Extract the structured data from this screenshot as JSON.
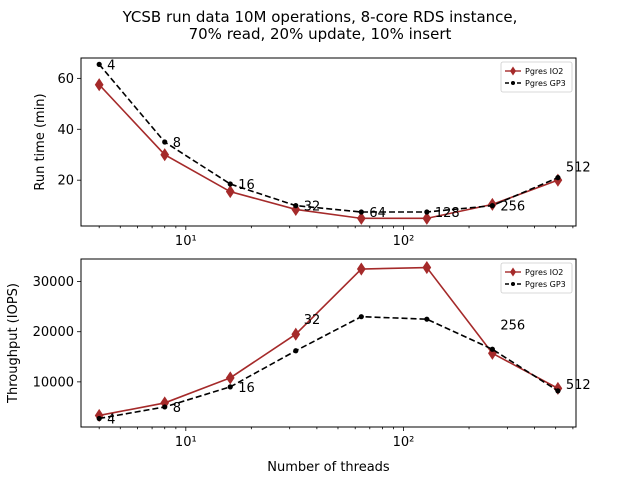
{
  "chart_data": [
    {
      "type": "line",
      "title": "YCSB run data 10M operations, 8-core RDS instance,\n70% read, 20% update, 10% insert",
      "xlabel": "",
      "ylabel": "Run time (min)",
      "xscale": "log",
      "xlim": [
        3.3,
        620
      ],
      "ylim": [
        2,
        68
      ],
      "yticks": [
        20,
        40,
        60
      ],
      "xticks": [
        {
          "value": 10,
          "label": "10¹"
        },
        {
          "value": 100,
          "label": "10²"
        }
      ],
      "x": [
        4,
        8,
        16,
        32,
        64,
        128,
        256,
        512
      ],
      "point_labels": [
        "4",
        "8",
        "16",
        "32",
        "64",
        "128",
        "256",
        "512"
      ],
      "legend": "top-right",
      "series": [
        {
          "name": "Pgres IO2",
          "color": "#a52a2a",
          "marker": "diamond",
          "dash": "solid",
          "values": [
            57.5,
            30,
            15.5,
            8.5,
            5,
            5,
            10.5,
            20
          ]
        },
        {
          "name": "Pgres GP3",
          "color": "#000000",
          "marker": "circle",
          "dash": "dashed",
          "values": [
            65.5,
            35,
            18.5,
            10,
            7.5,
            7.5,
            10,
            21
          ]
        }
      ]
    },
    {
      "type": "line",
      "title": "",
      "xlabel": "Number of threads",
      "ylabel": "Throughput (IOPS)",
      "xscale": "log",
      "xlim": [
        3.3,
        620
      ],
      "ylim": [
        1000,
        34500
      ],
      "yticks": [
        10000,
        20000,
        30000
      ],
      "xticks": [
        {
          "value": 10,
          "label": "10¹"
        },
        {
          "value": 100,
          "label": "10²"
        }
      ],
      "x": [
        4,
        8,
        16,
        32,
        64,
        128,
        256,
        512
      ],
      "point_labels": [
        "4",
        "8",
        "16",
        "32",
        "",
        "",
        "256",
        "512"
      ],
      "legend": "top-right",
      "series": [
        {
          "name": "Pgres IO2",
          "color": "#a52a2a",
          "marker": "diamond",
          "dash": "solid",
          "values": [
            3300,
            5800,
            10800,
            19500,
            32500,
            32800,
            15700,
            8700
          ]
        },
        {
          "name": "Pgres GP3",
          "color": "#000000",
          "marker": "circle",
          "dash": "dashed",
          "values": [
            2700,
            5000,
            9000,
            16200,
            23000,
            22500,
            16500,
            8200
          ]
        }
      ]
    }
  ]
}
